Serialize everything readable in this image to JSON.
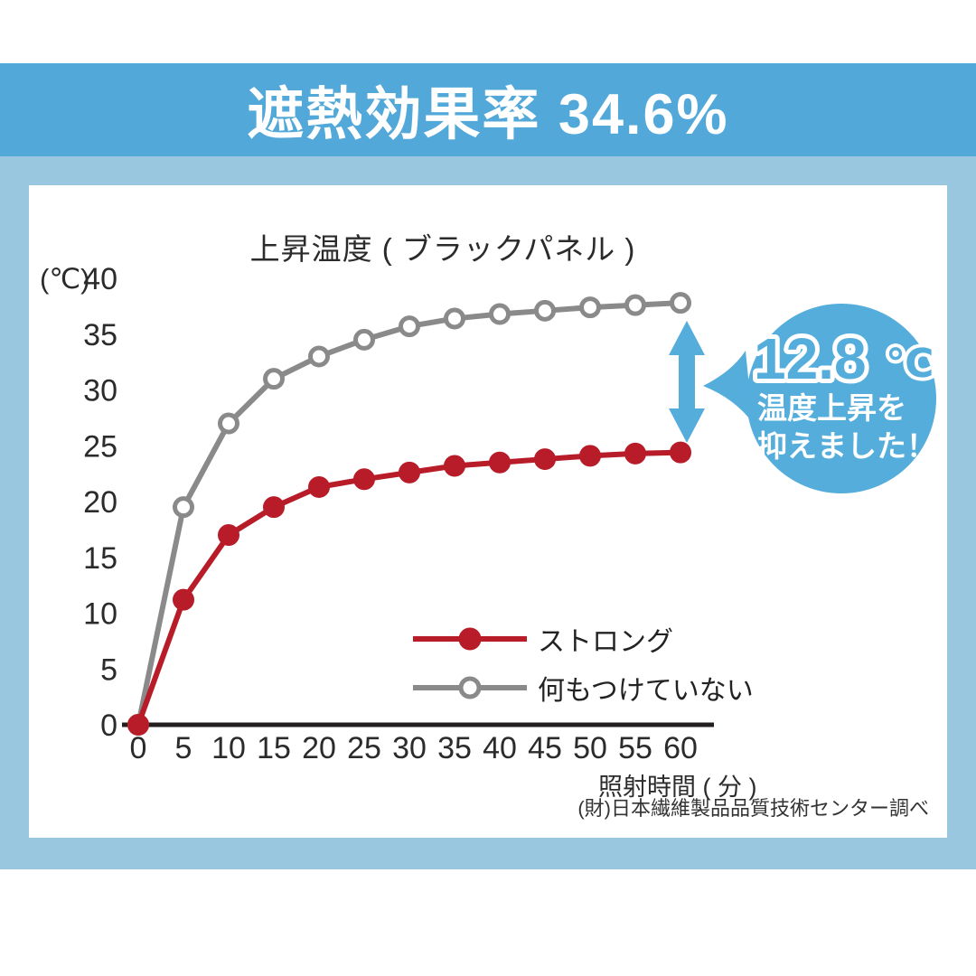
{
  "header": {
    "title": "遮熱効果率 34.6%"
  },
  "footer": {
    "source": "(財)日本繊維製品品質技術センター調べ"
  },
  "annotation": {
    "value": "12.8",
    "unit": "℃",
    "line1": "温度上昇を",
    "line2": "抑えました！"
  },
  "colors": {
    "header_blue": "#52a8d9",
    "panel_light_blue": "#99c7e0",
    "bubble_blue": "#55addc",
    "arrow_blue": "#55addc",
    "series_red": "#b71c28",
    "series_gray": "#8a8a8a",
    "axis_black": "#231f20"
  },
  "chart_data": {
    "type": "line",
    "title": "上昇温度 ( ブラックパネル )",
    "y_unit": "(℃)",
    "xlabel": "照射時間 ( 分 )",
    "x": [
      0,
      5,
      10,
      15,
      20,
      25,
      30,
      35,
      40,
      45,
      50,
      55,
      60
    ],
    "xtick_labels": [
      "0",
      "5",
      "10",
      "15",
      "20",
      "25",
      "30",
      "35",
      "40",
      "45",
      "50",
      "55",
      "60"
    ],
    "ylim": [
      0,
      40
    ],
    "ytick_step": 5,
    "grid": false,
    "legend_position": "inside lower right",
    "series": [
      {
        "name": "ストロング",
        "color": "#b71c28",
        "marker": "filled",
        "values": [
          0,
          11.2,
          17.0,
          19.5,
          21.3,
          22.0,
          22.6,
          23.2,
          23.5,
          23.8,
          24.1,
          24.3,
          24.4
        ]
      },
      {
        "name": "何もつけていない",
        "color": "#8a8a8a",
        "marker": "open",
        "values": [
          0,
          19.5,
          27.0,
          31.0,
          33.0,
          34.5,
          35.7,
          36.4,
          36.8,
          37.1,
          37.4,
          37.6,
          37.8
        ]
      }
    ],
    "difference_annotation": "12.8℃ 温度上昇を抑えました！"
  }
}
